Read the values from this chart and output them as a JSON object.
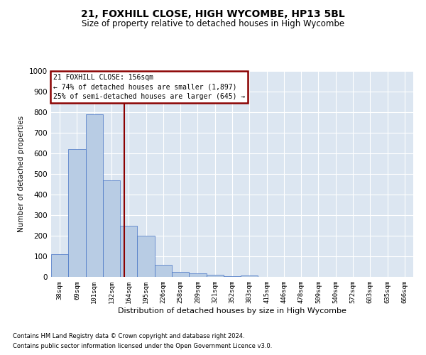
{
  "title1": "21, FOXHILL CLOSE, HIGH WYCOMBE, HP13 5BL",
  "title2": "Size of property relative to detached houses in High Wycombe",
  "xlabel": "Distribution of detached houses by size in High Wycombe",
  "ylabel": "Number of detached properties",
  "footer1": "Contains HM Land Registry data © Crown copyright and database right 2024.",
  "footer2": "Contains public sector information licensed under the Open Government Licence v3.0.",
  "annotation_line1": "21 FOXHILL CLOSE: 156sqm",
  "annotation_line2": "← 74% of detached houses are smaller (1,897)",
  "annotation_line3": "25% of semi-detached houses are larger (645) →",
  "bins": [
    "38sqm",
    "69sqm",
    "101sqm",
    "132sqm",
    "164sqm",
    "195sqm",
    "226sqm",
    "258sqm",
    "289sqm",
    "321sqm",
    "352sqm",
    "383sqm",
    "415sqm",
    "446sqm",
    "478sqm",
    "509sqm",
    "540sqm",
    "572sqm",
    "603sqm",
    "635sqm",
    "666sqm"
  ],
  "values": [
    110,
    620,
    790,
    470,
    250,
    200,
    60,
    25,
    18,
    12,
    5,
    8,
    0,
    0,
    0,
    0,
    0,
    0,
    0,
    0,
    0
  ],
  "bar_color": "#b8cce4",
  "bar_edge_color": "#4472c4",
  "vline_x": 3.74,
  "vline_color": "#8b0000",
  "bg_color": "#dce6f1",
  "annotation_box_color": "#8b0000",
  "ylim": [
    0,
    1000
  ],
  "grid_color": "#ffffff",
  "figwidth": 6.0,
  "figheight": 5.0,
  "dpi": 100
}
